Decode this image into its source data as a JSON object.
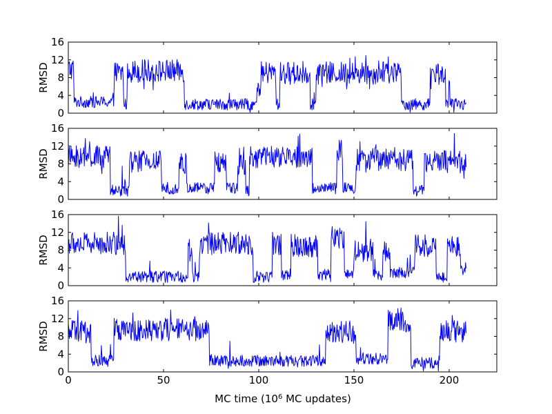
{
  "chart_data": {
    "type": "line",
    "line_color": "#0000ff",
    "background": "#ffffff",
    "grid": false,
    "shared_xlim": [
      0,
      225
    ],
    "xticks": [
      0,
      50,
      100,
      150,
      200
    ],
    "xtick_labels": [
      "0",
      "50",
      "100",
      "150",
      "200"
    ],
    "xlabel_prefix": "MC time (",
    "xlabel_base": "10",
    "xlabel_exponent": "6",
    "xlabel_suffix": " MC updates)",
    "panels": [
      {
        "ylabel": "RMSD",
        "ylim": [
          0,
          16
        ],
        "yticks": [
          0,
          4,
          8,
          12,
          16
        ],
        "ytick_labels": [
          "0",
          "4",
          "8",
          "12",
          "16"
        ],
        "segments": [
          [
            0,
            3,
            10
          ],
          [
            3,
            24,
            2.5
          ],
          [
            24,
            29,
            9
          ],
          [
            29,
            31,
            2
          ],
          [
            31,
            61,
            9.5
          ],
          [
            61,
            99,
            2
          ],
          [
            99,
            101,
            5
          ],
          [
            101,
            109,
            9
          ],
          [
            109,
            111,
            2
          ],
          [
            111,
            127,
            9
          ],
          [
            127,
            130,
            2
          ],
          [
            130,
            175,
            9
          ],
          [
            175,
            190,
            2
          ],
          [
            190,
            198,
            9
          ],
          [
            198,
            209,
            2
          ]
        ]
      },
      {
        "ylabel": "RMSD",
        "ylim": [
          0,
          16
        ],
        "yticks": [
          0,
          4,
          8,
          12,
          16
        ],
        "ytick_labels": [
          "0",
          "4",
          "8",
          "12",
          "16"
        ],
        "segments": [
          [
            0,
            22,
            9.5
          ],
          [
            22,
            32,
            2
          ],
          [
            32,
            49,
            8.5
          ],
          [
            49,
            58,
            2.5
          ],
          [
            58,
            62,
            8
          ],
          [
            62,
            77,
            2.5
          ],
          [
            77,
            83,
            8.5
          ],
          [
            83,
            89,
            2.5
          ],
          [
            89,
            93,
            8
          ],
          [
            93,
            95,
            2
          ],
          [
            95,
            128,
            9.5
          ],
          [
            128,
            141,
            2.5
          ],
          [
            141,
            144,
            11
          ],
          [
            144,
            151,
            2.5
          ],
          [
            151,
            181,
            9
          ],
          [
            181,
            187,
            2
          ],
          [
            187,
            209,
            8.5
          ]
        ]
      },
      {
        "ylabel": "RMSD",
        "ylim": [
          0,
          16
        ],
        "yticks": [
          0,
          4,
          8,
          12,
          16
        ],
        "ytick_labels": [
          "0",
          "4",
          "8",
          "12",
          "16"
        ],
        "segments": [
          [
            0,
            30,
            9.5
          ],
          [
            30,
            63,
            2
          ],
          [
            63,
            65,
            8
          ],
          [
            65,
            69,
            2
          ],
          [
            69,
            97,
            9.5
          ],
          [
            97,
            107,
            2
          ],
          [
            107,
            112,
            9.5
          ],
          [
            112,
            117,
            2.5
          ],
          [
            117,
            131,
            9
          ],
          [
            131,
            138,
            2.5
          ],
          [
            138,
            145,
            11
          ],
          [
            145,
            150,
            2.5
          ],
          [
            150,
            160,
            8
          ],
          [
            160,
            165,
            2.5
          ],
          [
            165,
            169,
            8
          ],
          [
            169,
            182,
            3
          ],
          [
            182,
            193,
            9
          ],
          [
            193,
            199,
            2
          ],
          [
            199,
            206,
            9
          ],
          [
            206,
            209,
            4
          ]
        ]
      },
      {
        "ylabel": "RMSD",
        "ylim": [
          0,
          16
        ],
        "yticks": [
          0,
          4,
          8,
          12,
          16
        ],
        "ytick_labels": [
          "0",
          "4",
          "8",
          "12",
          "16"
        ],
        "segments": [
          [
            0,
            12,
            9
          ],
          [
            12,
            24,
            2.5
          ],
          [
            24,
            74,
            9.5
          ],
          [
            74,
            135,
            2.5
          ],
          [
            135,
            151,
            9
          ],
          [
            151,
            168,
            3
          ],
          [
            168,
            176,
            12
          ],
          [
            176,
            180,
            9
          ],
          [
            180,
            195,
            2
          ],
          [
            195,
            209,
            9
          ]
        ]
      }
    ]
  }
}
